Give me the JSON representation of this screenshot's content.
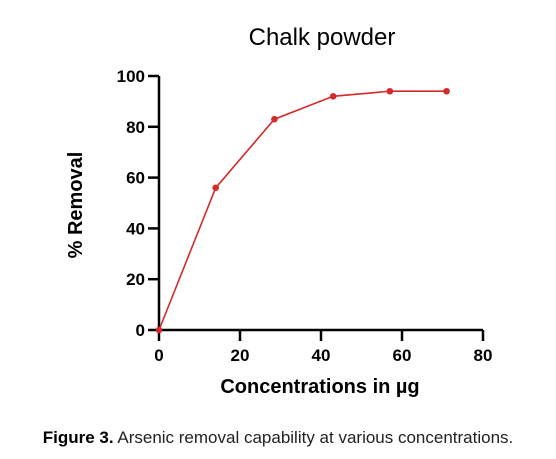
{
  "chart_data": {
    "type": "line",
    "title": "Chalk powder",
    "xlabel": "Concentrations in µg",
    "ylabel": "% Removal",
    "xlim": [
      0,
      80
    ],
    "ylim": [
      0,
      100
    ],
    "x_ticks": [
      "0",
      "20",
      "40",
      "60",
      "80"
    ],
    "y_ticks": [
      "0",
      "20",
      "40",
      "60",
      "80",
      "100"
    ],
    "grid": false,
    "series": [
      {
        "color": "#d42a2a",
        "x": [
          0,
          14,
          28.5,
          43,
          57,
          71
        ],
        "y": [
          0,
          56,
          83,
          92,
          94,
          94
        ]
      }
    ]
  },
  "caption": {
    "label": "Figure 3.",
    "text": " Arsenic removal capability at various concentrations."
  }
}
